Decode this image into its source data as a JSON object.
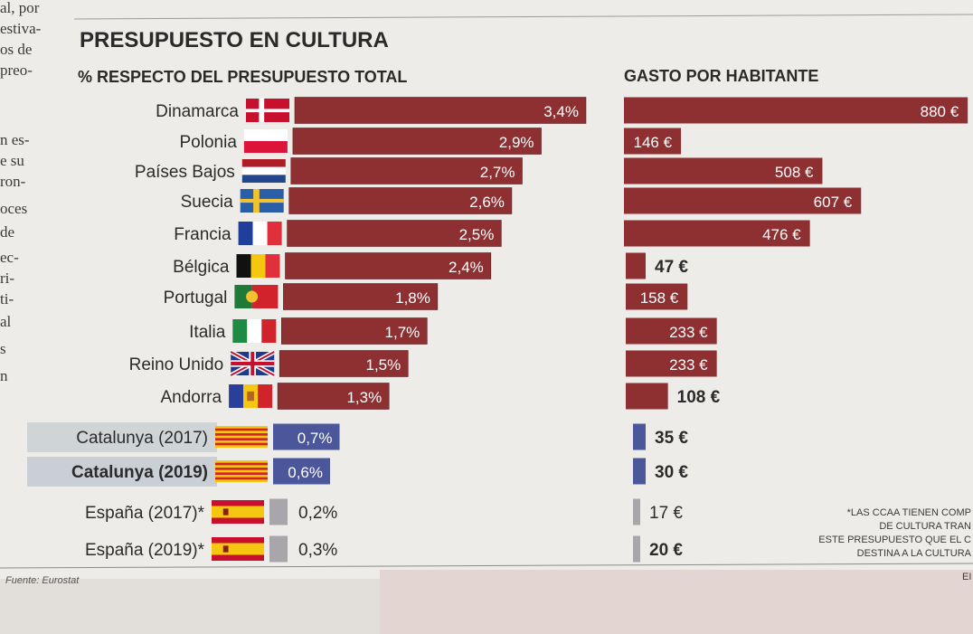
{
  "left_column_fragments": [
    "al, por",
    "estiva-",
    "os de",
    "preo-",
    "n es-",
    "e su",
    "ron-",
    "oces",
    "de",
    "ec-",
    "ri-",
    "ti-",
    "al",
    "s",
    "n"
  ],
  "header": {
    "title": "PRESUPUESTO EN CULTURA",
    "left_subtitle": "% RESPECTO DEL PRESUPUESTO TOTAL",
    "right_subtitle": "GASTO POR HABITANTE"
  },
  "colors": {
    "bar_red": "#8e3032",
    "bar_blue": "#4b579a",
    "bar_grey": "#a8a6aa",
    "highlight_band": "#c4ccd2"
  },
  "chart_data": [
    {
      "type": "bar",
      "orientation": "horizontal",
      "subtitle": "% RESPECTO DEL PRESUPUESTO TOTAL",
      "unit": "%",
      "categories": [
        "Dinamarca",
        "Polonia",
        "Países Bajos",
        "Suecia",
        "Francia",
        "Bélgica",
        "Portugal",
        "Italia",
        "Reino Unido",
        "Andorra",
        "Catalunya (2017)",
        "Catalunya (2019)",
        "España (2017)*",
        "España (2019)*"
      ],
      "values": [
        3.4,
        2.9,
        2.7,
        2.6,
        2.5,
        2.4,
        1.8,
        1.7,
        1.5,
        1.3,
        0.7,
        0.6,
        0.2,
        0.3
      ],
      "labels": [
        "3,4%",
        "2,9%",
        "2,7%",
        "2,6%",
        "2,5%",
        "2,4%",
        "1,8%",
        "1,7%",
        "1,5%",
        "1,3%",
        "0,7%",
        "0,6%",
        "0,2%",
        "0,3%"
      ]
    },
    {
      "type": "bar",
      "orientation": "horizontal",
      "subtitle": "GASTO POR HABITANTE",
      "unit": "€",
      "categories": [
        "Dinamarca",
        "Polonia",
        "Países Bajos",
        "Suecia",
        "Francia",
        "Bélgica",
        "Portugal",
        "Italia",
        "Reino Unido",
        "Andorra",
        "Catalunya (2017)",
        "Catalunya (2019)",
        "España (2017)*",
        "España (2019)*"
      ],
      "values": [
        880,
        146,
        508,
        607,
        476,
        47,
        158,
        233,
        233,
        108,
        35,
        30,
        17,
        20
      ],
      "labels": [
        "880 €",
        "146 €",
        "508 €",
        "607 €",
        "476 €",
        "47 €",
        "158 €",
        "233 €",
        "233 €",
        "108 €",
        "35 €",
        "30 €",
        "17 €",
        "20 €"
      ]
    }
  ],
  "flags": [
    "denmark",
    "poland",
    "netherlands",
    "sweden",
    "france",
    "belgium",
    "portugal",
    "italy",
    "united-kingdom",
    "andorra",
    "catalonia",
    "catalonia",
    "spain",
    "spain"
  ],
  "note_lines": [
    "*LAS CCAA TIENEN COMP",
    "DE CULTURA TRAN",
    "ESTE PRESUPUESTO QUE EL C",
    "DESTINA A LA CULTURA"
  ],
  "source": "Fuente: Eurostat",
  "corner_text": "EI"
}
